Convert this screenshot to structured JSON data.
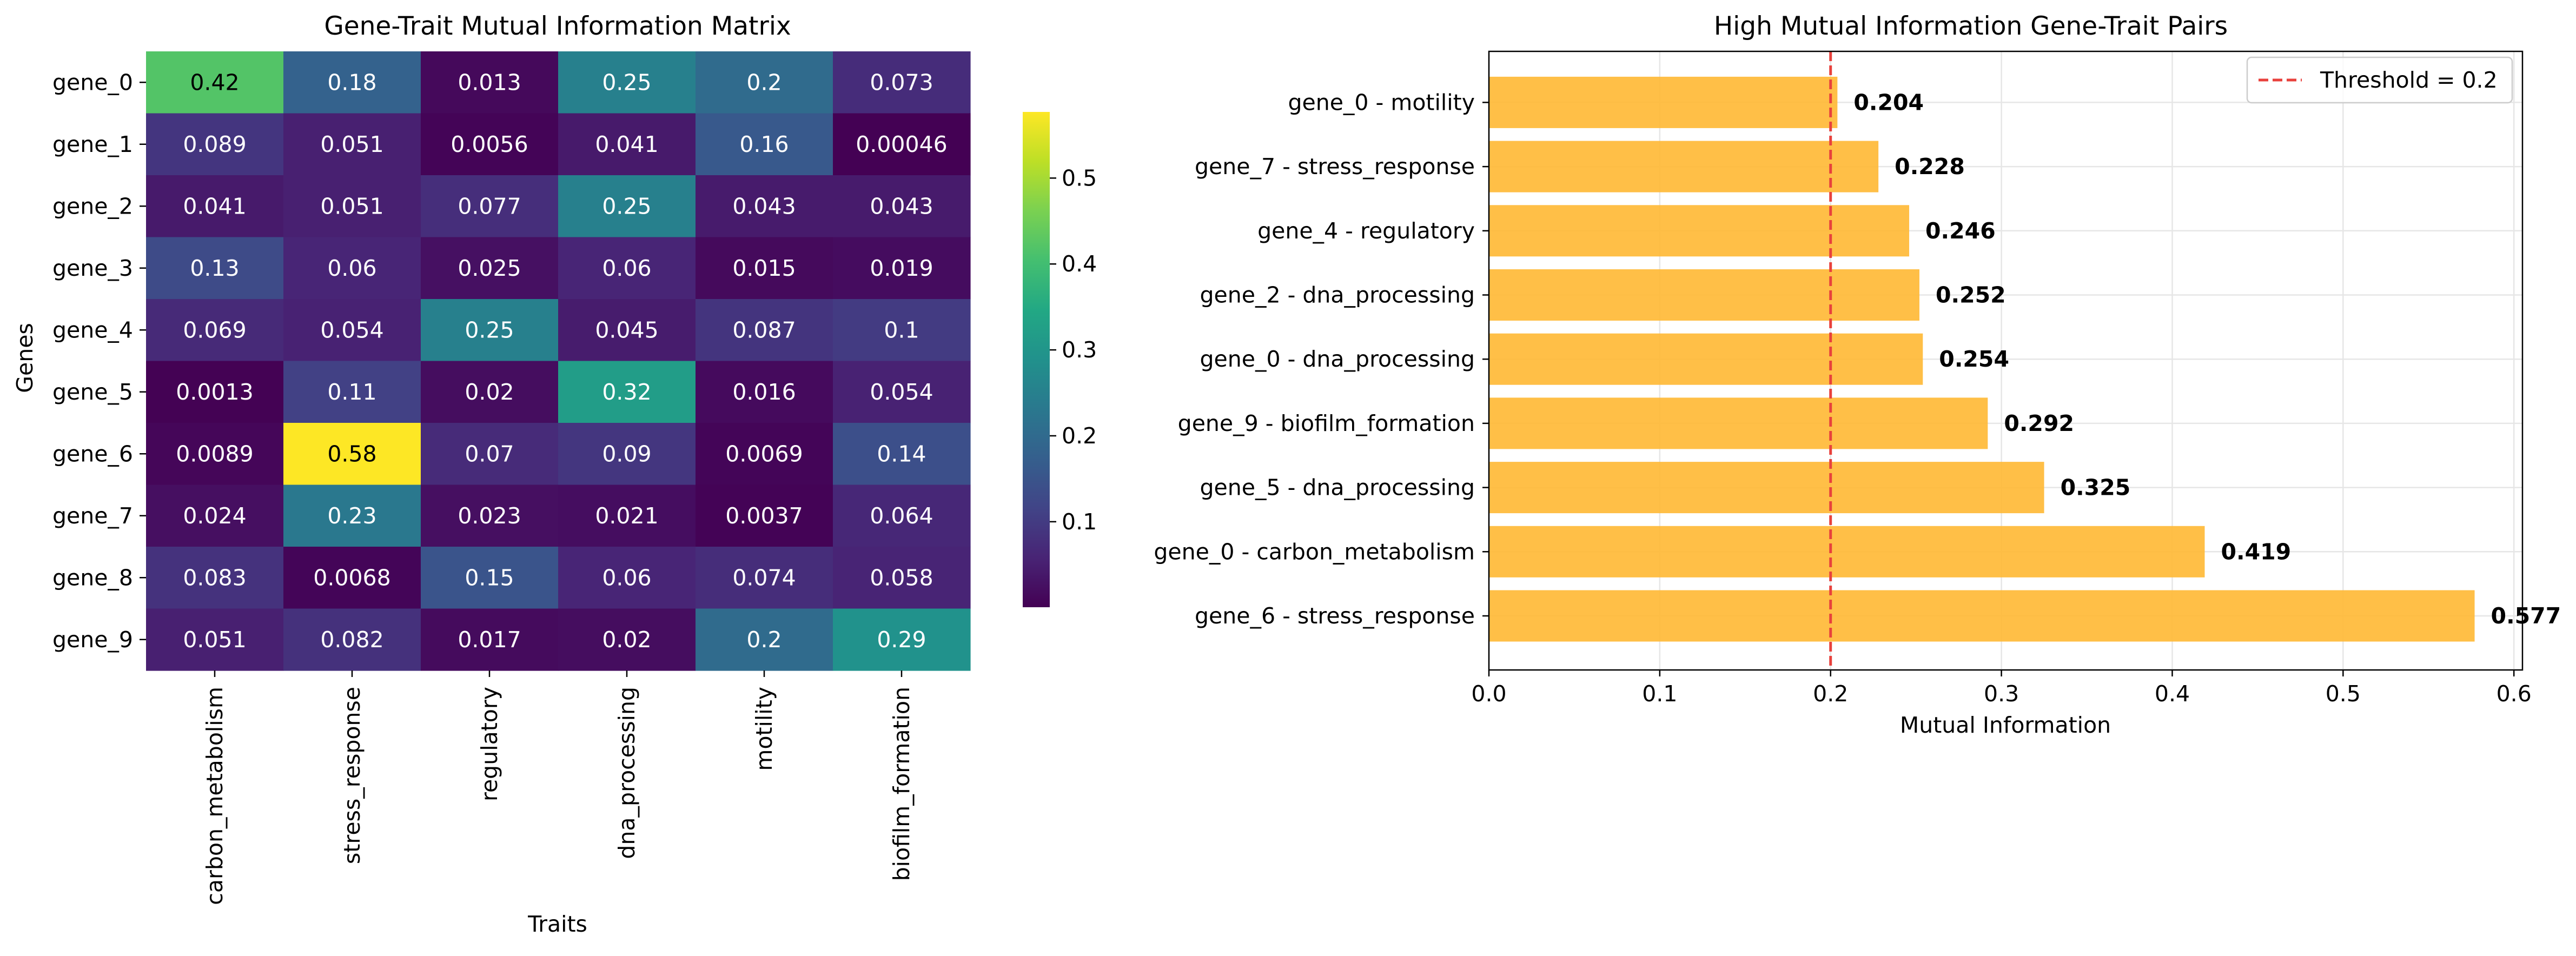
{
  "chart_data": [
    {
      "type": "heatmap",
      "title": "Gene-Trait Mutual Information Matrix",
      "xlabel": "Traits",
      "ylabel": "Genes",
      "x_categories": [
        "carbon_metabolism",
        "stress_response",
        "regulatory",
        "dna_processing",
        "motility",
        "biofilm_formation"
      ],
      "y_categories": [
        "gene_0",
        "gene_1",
        "gene_2",
        "gene_3",
        "gene_4",
        "gene_5",
        "gene_6",
        "gene_7",
        "gene_8",
        "gene_9"
      ],
      "values": [
        [
          0.42,
          0.18,
          0.013,
          0.25,
          0.2,
          0.073
        ],
        [
          0.089,
          0.051,
          0.0056,
          0.041,
          0.16,
          0.00046
        ],
        [
          0.041,
          0.051,
          0.077,
          0.25,
          0.043,
          0.043
        ],
        [
          0.13,
          0.06,
          0.025,
          0.06,
          0.015,
          0.019
        ],
        [
          0.069,
          0.054,
          0.25,
          0.045,
          0.087,
          0.1
        ],
        [
          0.0013,
          0.11,
          0.02,
          0.32,
          0.016,
          0.054
        ],
        [
          0.0089,
          0.58,
          0.07,
          0.09,
          0.0069,
          0.14
        ],
        [
          0.024,
          0.23,
          0.023,
          0.021,
          0.0037,
          0.064
        ],
        [
          0.083,
          0.0068,
          0.15,
          0.06,
          0.074,
          0.058
        ],
        [
          0.051,
          0.082,
          0.017,
          0.02,
          0.2,
          0.29
        ]
      ],
      "cell_labels": [
        [
          "0.42",
          "0.18",
          "0.013",
          "0.25",
          "0.2",
          "0.073"
        ],
        [
          "0.089",
          "0.051",
          "0.0056",
          "0.041",
          "0.16",
          "0.00046"
        ],
        [
          "0.041",
          "0.051",
          "0.077",
          "0.25",
          "0.043",
          "0.043"
        ],
        [
          "0.13",
          "0.06",
          "0.025",
          "0.06",
          "0.015",
          "0.019"
        ],
        [
          "0.069",
          "0.054",
          "0.25",
          "0.045",
          "0.087",
          "0.1"
        ],
        [
          "0.0013",
          "0.11",
          "0.02",
          "0.32",
          "0.016",
          "0.054"
        ],
        [
          "0.0089",
          "0.58",
          "0.07",
          "0.09",
          "0.0069",
          "0.14"
        ],
        [
          "0.024",
          "0.23",
          "0.023",
          "0.021",
          "0.0037",
          "0.064"
        ],
        [
          "0.083",
          "0.0068",
          "0.15",
          "0.06",
          "0.074",
          "0.058"
        ],
        [
          "0.051",
          "0.082",
          "0.017",
          "0.02",
          "0.2",
          "0.29"
        ]
      ],
      "colormap": "viridis",
      "colorbar": {
        "range": [
          0.00046,
          0.577
        ],
        "ticks": [
          0.1,
          0.2,
          0.3,
          0.4,
          0.5
        ],
        "tick_labels": [
          "0.1",
          "0.2",
          "0.3",
          "0.4",
          "0.5"
        ]
      }
    },
    {
      "type": "bar",
      "orientation": "horizontal",
      "title": "High Mutual Information Gene-Trait Pairs",
      "xlabel": "Mutual Information",
      "ylabel": "",
      "categories": [
        "gene_0 - motility",
        "gene_7 - stress_response",
        "gene_4 - regulatory",
        "gene_2 - dna_processing",
        "gene_0 - dna_processing",
        "gene_9 - biofilm_formation",
        "gene_5 - dna_processing",
        "gene_0 - carbon_metabolism",
        "gene_6 - stress_response"
      ],
      "values": [
        0.204,
        0.228,
        0.246,
        0.252,
        0.254,
        0.292,
        0.325,
        0.419,
        0.577
      ],
      "value_labels": [
        "0.204",
        "0.228",
        "0.246",
        "0.252",
        "0.254",
        "0.292",
        "0.325",
        "0.419",
        "0.577"
      ],
      "xlim": [
        0.0,
        0.605
      ],
      "x_ticks": [
        0.0,
        0.1,
        0.2,
        0.3,
        0.4,
        0.5,
        0.6
      ],
      "x_tick_labels": [
        "0.0",
        "0.1",
        "0.2",
        "0.3",
        "0.4",
        "0.5",
        "0.6"
      ],
      "bar_color": "#FFB833",
      "threshold": {
        "value": 0.2,
        "label": "Threshold = 0.2",
        "color": "#E8413C",
        "style": "dashed"
      },
      "grid": true,
      "legend": "top-right"
    }
  ]
}
